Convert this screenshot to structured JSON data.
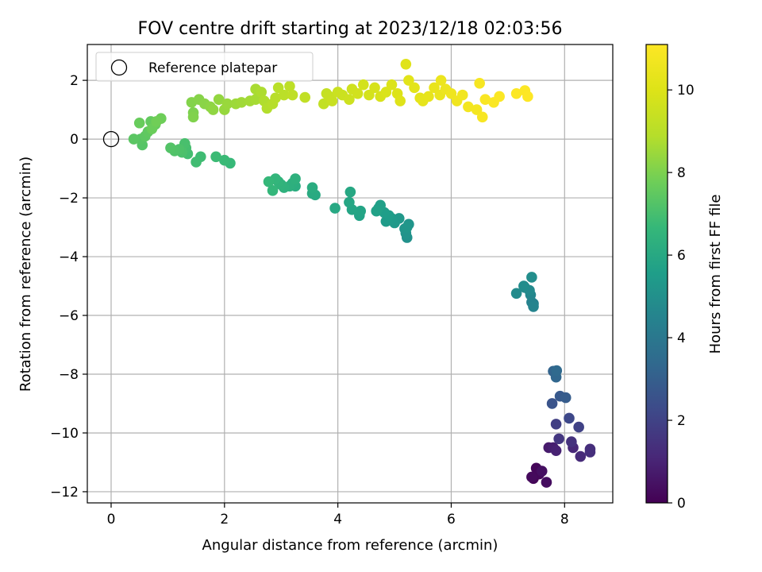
{
  "chart_data": {
    "type": "scatter",
    "title": "FOV centre drift starting at 2023/12/18 02:03:56",
    "xlabel": "Angular distance from reference (arcmin)",
    "ylabel": "Rotation from reference (arcmin)",
    "xlim": [
      -0.42,
      8.85
    ],
    "ylim": [
      -12.38,
      3.22
    ],
    "xticks": [
      0,
      2,
      4,
      6,
      8
    ],
    "yticks": [
      -12,
      -10,
      -8,
      -6,
      -4,
      -2,
      0,
      2
    ],
    "grid": true,
    "legend": {
      "position": "top-left",
      "entries": [
        "Reference platepar"
      ]
    },
    "reference_point": {
      "x": 0,
      "y": 0,
      "label": "Reference platepar"
    },
    "colorbar": {
      "label": "Hours from first FF file",
      "colormap": "viridis",
      "range": [
        0,
        11.1
      ],
      "ticks": [
        0,
        2,
        4,
        6,
        8,
        10
      ]
    },
    "series": [
      {
        "values": [
          {
            "x": 7.45,
            "y": -11.55,
            "t": 0.1
          },
          {
            "x": 7.5,
            "y": -11.2,
            "t": 0.15
          },
          {
            "x": 7.55,
            "y": -11.4,
            "t": 0.2
          },
          {
            "x": 7.42,
            "y": -11.5,
            "t": 0.25
          },
          {
            "x": 7.68,
            "y": -11.68,
            "t": 0.35
          },
          {
            "x": 7.6,
            "y": -11.3,
            "t": 0.4
          },
          {
            "x": 7.72,
            "y": -10.5,
            "t": 0.75
          },
          {
            "x": 7.8,
            "y": -10.5,
            "t": 0.85
          },
          {
            "x": 7.85,
            "y": -10.6,
            "t": 0.95
          },
          {
            "x": 8.15,
            "y": -10.5,
            "t": 1.1
          },
          {
            "x": 8.28,
            "y": -10.8,
            "t": 1.2
          },
          {
            "x": 8.45,
            "y": -10.55,
            "t": 1.3
          },
          {
            "x": 8.45,
            "y": -10.65,
            "t": 1.35
          },
          {
            "x": 8.12,
            "y": -10.3,
            "t": 1.45
          },
          {
            "x": 7.9,
            "y": -10.2,
            "t": 1.6
          },
          {
            "x": 7.85,
            "y": -9.7,
            "t": 1.9
          },
          {
            "x": 8.25,
            "y": -9.8,
            "t": 2.0
          },
          {
            "x": 8.08,
            "y": -9.5,
            "t": 2.2
          },
          {
            "x": 7.78,
            "y": -9.0,
            "t": 2.6
          },
          {
            "x": 7.92,
            "y": -8.75,
            "t": 2.8
          },
          {
            "x": 8.02,
            "y": -8.8,
            "t": 2.9
          },
          {
            "x": 7.8,
            "y": -7.9,
            "t": 3.2
          },
          {
            "x": 7.85,
            "y": -8.1,
            "t": 3.3
          },
          {
            "x": 7.86,
            "y": -7.88,
            "t": 3.4
          },
          {
            "x": 7.45,
            "y": -5.6,
            "t": 4.4
          },
          {
            "x": 7.42,
            "y": -5.55,
            "t": 4.45
          },
          {
            "x": 7.45,
            "y": -5.7,
            "t": 4.5
          },
          {
            "x": 7.4,
            "y": -5.3,
            "t": 4.6
          },
          {
            "x": 7.3,
            "y": -5.05,
            "t": 4.7
          },
          {
            "x": 7.38,
            "y": -5.15,
            "t": 4.75
          },
          {
            "x": 7.15,
            "y": -5.25,
            "t": 4.8
          },
          {
            "x": 7.28,
            "y": -5.0,
            "t": 4.85
          },
          {
            "x": 7.42,
            "y": -4.7,
            "t": 4.9
          },
          {
            "x": 5.22,
            "y": -3.35,
            "t": 5.05
          },
          {
            "x": 5.2,
            "y": -3.2,
            "t": 5.1
          },
          {
            "x": 5.18,
            "y": -3.05,
            "t": 5.15
          },
          {
            "x": 5.25,
            "y": -2.9,
            "t": 5.2
          },
          {
            "x": 5.22,
            "y": -3.0,
            "t": 5.25
          },
          {
            "x": 5.08,
            "y": -2.7,
            "t": 5.3
          },
          {
            "x": 5.0,
            "y": -2.85,
            "t": 5.35
          },
          {
            "x": 4.95,
            "y": -2.7,
            "t": 5.4
          },
          {
            "x": 4.85,
            "y": -2.8,
            "t": 5.45
          },
          {
            "x": 4.9,
            "y": -2.6,
            "t": 5.5
          },
          {
            "x": 4.82,
            "y": -2.5,
            "t": 5.55
          },
          {
            "x": 4.72,
            "y": -2.35,
            "t": 5.6
          },
          {
            "x": 4.75,
            "y": -2.25,
            "t": 5.65
          },
          {
            "x": 4.68,
            "y": -2.45,
            "t": 5.7
          },
          {
            "x": 4.38,
            "y": -2.6,
            "t": 5.75
          },
          {
            "x": 4.4,
            "y": -2.45,
            "t": 5.8
          },
          {
            "x": 4.25,
            "y": -2.4,
            "t": 5.85
          },
          {
            "x": 4.2,
            "y": -2.15,
            "t": 5.9
          },
          {
            "x": 4.22,
            "y": -1.8,
            "t": 5.95
          },
          {
            "x": 3.95,
            "y": -2.35,
            "t": 6.0
          },
          {
            "x": 3.6,
            "y": -1.9,
            "t": 6.05
          },
          {
            "x": 3.55,
            "y": -1.85,
            "t": 6.1
          },
          {
            "x": 3.55,
            "y": -1.65,
            "t": 6.15
          },
          {
            "x": 3.25,
            "y": -1.6,
            "t": 6.2
          },
          {
            "x": 3.2,
            "y": -1.5,
            "t": 6.25
          },
          {
            "x": 3.15,
            "y": -1.6,
            "t": 6.3
          },
          {
            "x": 3.25,
            "y": -1.35,
            "t": 6.35
          },
          {
            "x": 3.05,
            "y": -1.65,
            "t": 6.4
          },
          {
            "x": 3.0,
            "y": -1.55,
            "t": 6.45
          },
          {
            "x": 2.95,
            "y": -1.45,
            "t": 6.5
          },
          {
            "x": 2.9,
            "y": -1.35,
            "t": 6.55
          },
          {
            "x": 2.85,
            "y": -1.75,
            "t": 6.6
          },
          {
            "x": 2.78,
            "y": -1.45,
            "t": 6.65
          },
          {
            "x": 2.1,
            "y": -0.82,
            "t": 6.7
          },
          {
            "x": 2.0,
            "y": -0.72,
            "t": 6.75
          },
          {
            "x": 1.85,
            "y": -0.6,
            "t": 6.8
          },
          {
            "x": 1.58,
            "y": -0.6,
            "t": 6.85
          },
          {
            "x": 1.5,
            "y": -0.78,
            "t": 6.9
          },
          {
            "x": 1.35,
            "y": -0.5,
            "t": 6.95
          },
          {
            "x": 1.32,
            "y": -0.3,
            "t": 7.0
          },
          {
            "x": 1.3,
            "y": -0.15,
            "t": 7.05
          },
          {
            "x": 1.25,
            "y": -0.45,
            "t": 7.1
          },
          {
            "x": 1.2,
            "y": -0.35,
            "t": 7.15
          },
          {
            "x": 1.12,
            "y": -0.4,
            "t": 7.2
          },
          {
            "x": 1.05,
            "y": -0.3,
            "t": 7.25
          },
          {
            "x": 0.55,
            "y": -0.2,
            "t": 7.3
          },
          {
            "x": 0.52,
            "y": 0.0,
            "t": 7.35
          },
          {
            "x": 0.4,
            "y": 0.0,
            "t": 7.4
          },
          {
            "x": 0.6,
            "y": 0.1,
            "t": 7.45
          },
          {
            "x": 0.65,
            "y": 0.25,
            "t": 7.5
          },
          {
            "x": 0.7,
            "y": 0.6,
            "t": 7.55
          },
          {
            "x": 0.78,
            "y": 0.5,
            "t": 7.6
          },
          {
            "x": 0.5,
            "y": 0.55,
            "t": 7.65
          },
          {
            "x": 0.72,
            "y": 0.35,
            "t": 7.7
          },
          {
            "x": 0.88,
            "y": 0.7,
            "t": 7.75
          },
          {
            "x": 0.8,
            "y": 0.6,
            "t": 7.8
          },
          {
            "x": 1.45,
            "y": 0.9,
            "t": 8.0
          },
          {
            "x": 1.45,
            "y": 0.75,
            "t": 8.05
          },
          {
            "x": 1.42,
            "y": 1.25,
            "t": 8.1
          },
          {
            "x": 1.55,
            "y": 1.35,
            "t": 8.15
          },
          {
            "x": 1.65,
            "y": 1.2,
            "t": 8.2
          },
          {
            "x": 1.75,
            "y": 1.1,
            "t": 8.25
          },
          {
            "x": 1.8,
            "y": 1.0,
            "t": 8.3
          },
          {
            "x": 1.9,
            "y": 1.35,
            "t": 8.35
          },
          {
            "x": 2.0,
            "y": 1.0,
            "t": 8.4
          },
          {
            "x": 2.05,
            "y": 1.2,
            "t": 8.45
          },
          {
            "x": 2.2,
            "y": 1.2,
            "t": 8.5
          },
          {
            "x": 2.3,
            "y": 1.25,
            "t": 8.55
          },
          {
            "x": 2.45,
            "y": 1.3,
            "t": 8.6
          },
          {
            "x": 2.55,
            "y": 1.35,
            "t": 8.65
          },
          {
            "x": 2.55,
            "y": 1.7,
            "t": 8.7
          },
          {
            "x": 2.65,
            "y": 1.6,
            "t": 8.75
          },
          {
            "x": 2.7,
            "y": 1.3,
            "t": 8.8
          },
          {
            "x": 2.75,
            "y": 1.05,
            "t": 8.85
          },
          {
            "x": 2.85,
            "y": 1.2,
            "t": 8.9
          },
          {
            "x": 2.9,
            "y": 1.4,
            "t": 8.95
          },
          {
            "x": 2.95,
            "y": 1.75,
            "t": 9.0
          },
          {
            "x": 3.05,
            "y": 1.5,
            "t": 9.05
          },
          {
            "x": 3.15,
            "y": 1.8,
            "t": 9.1
          },
          {
            "x": 3.2,
            "y": 1.5,
            "t": 9.15
          },
          {
            "x": 3.42,
            "y": 1.42,
            "t": 9.2
          },
          {
            "x": 3.75,
            "y": 1.2,
            "t": 9.25
          },
          {
            "x": 3.8,
            "y": 1.55,
            "t": 9.3
          },
          {
            "x": 3.85,
            "y": 1.45,
            "t": 9.35
          },
          {
            "x": 3.9,
            "y": 1.3,
            "t": 9.4
          },
          {
            "x": 4.0,
            "y": 1.6,
            "t": 9.45
          },
          {
            "x": 4.08,
            "y": 1.5,
            "t": 9.5
          },
          {
            "x": 4.2,
            "y": 1.35,
            "t": 9.55
          },
          {
            "x": 4.25,
            "y": 1.7,
            "t": 9.6
          },
          {
            "x": 4.35,
            "y": 1.55,
            "t": 9.65
          },
          {
            "x": 4.45,
            "y": 1.85,
            "t": 9.7
          },
          {
            "x": 4.55,
            "y": 1.5,
            "t": 9.75
          },
          {
            "x": 4.65,
            "y": 1.75,
            "t": 9.8
          },
          {
            "x": 4.75,
            "y": 1.45,
            "t": 9.85
          },
          {
            "x": 4.85,
            "y": 1.6,
            "t": 9.9
          },
          {
            "x": 4.95,
            "y": 1.85,
            "t": 9.95
          },
          {
            "x": 5.05,
            "y": 1.55,
            "t": 10.0
          },
          {
            "x": 5.1,
            "y": 1.3,
            "t": 10.05
          },
          {
            "x": 5.2,
            "y": 2.55,
            "t": 10.1
          },
          {
            "x": 5.25,
            "y": 2.0,
            "t": 10.15
          },
          {
            "x": 5.35,
            "y": 1.75,
            "t": 10.2
          },
          {
            "x": 5.45,
            "y": 1.4,
            "t": 10.25
          },
          {
            "x": 5.5,
            "y": 1.3,
            "t": 10.3
          },
          {
            "x": 5.6,
            "y": 1.45,
            "t": 10.35
          },
          {
            "x": 5.7,
            "y": 1.75,
            "t": 10.4
          },
          {
            "x": 5.8,
            "y": 1.5,
            "t": 10.45
          },
          {
            "x": 5.82,
            "y": 2.0,
            "t": 10.5
          },
          {
            "x": 5.9,
            "y": 1.7,
            "t": 10.55
          },
          {
            "x": 6.0,
            "y": 1.55,
            "t": 10.6
          },
          {
            "x": 6.1,
            "y": 1.3,
            "t": 10.65
          },
          {
            "x": 6.2,
            "y": 1.5,
            "t": 10.7
          },
          {
            "x": 6.3,
            "y": 1.1,
            "t": 10.75
          },
          {
            "x": 6.45,
            "y": 1.0,
            "t": 10.8
          },
          {
            "x": 6.5,
            "y": 1.9,
            "t": 10.85
          },
          {
            "x": 6.55,
            "y": 0.75,
            "t": 10.9
          },
          {
            "x": 6.6,
            "y": 1.35,
            "t": 10.95
          },
          {
            "x": 6.75,
            "y": 1.25,
            "t": 11.0
          },
          {
            "x": 6.85,
            "y": 1.45,
            "t": 11.03
          },
          {
            "x": 7.15,
            "y": 1.55,
            "t": 11.06
          },
          {
            "x": 7.3,
            "y": 1.65,
            "t": 11.08
          },
          {
            "x": 7.35,
            "y": 1.45,
            "t": 11.1
          }
        ]
      }
    ]
  }
}
